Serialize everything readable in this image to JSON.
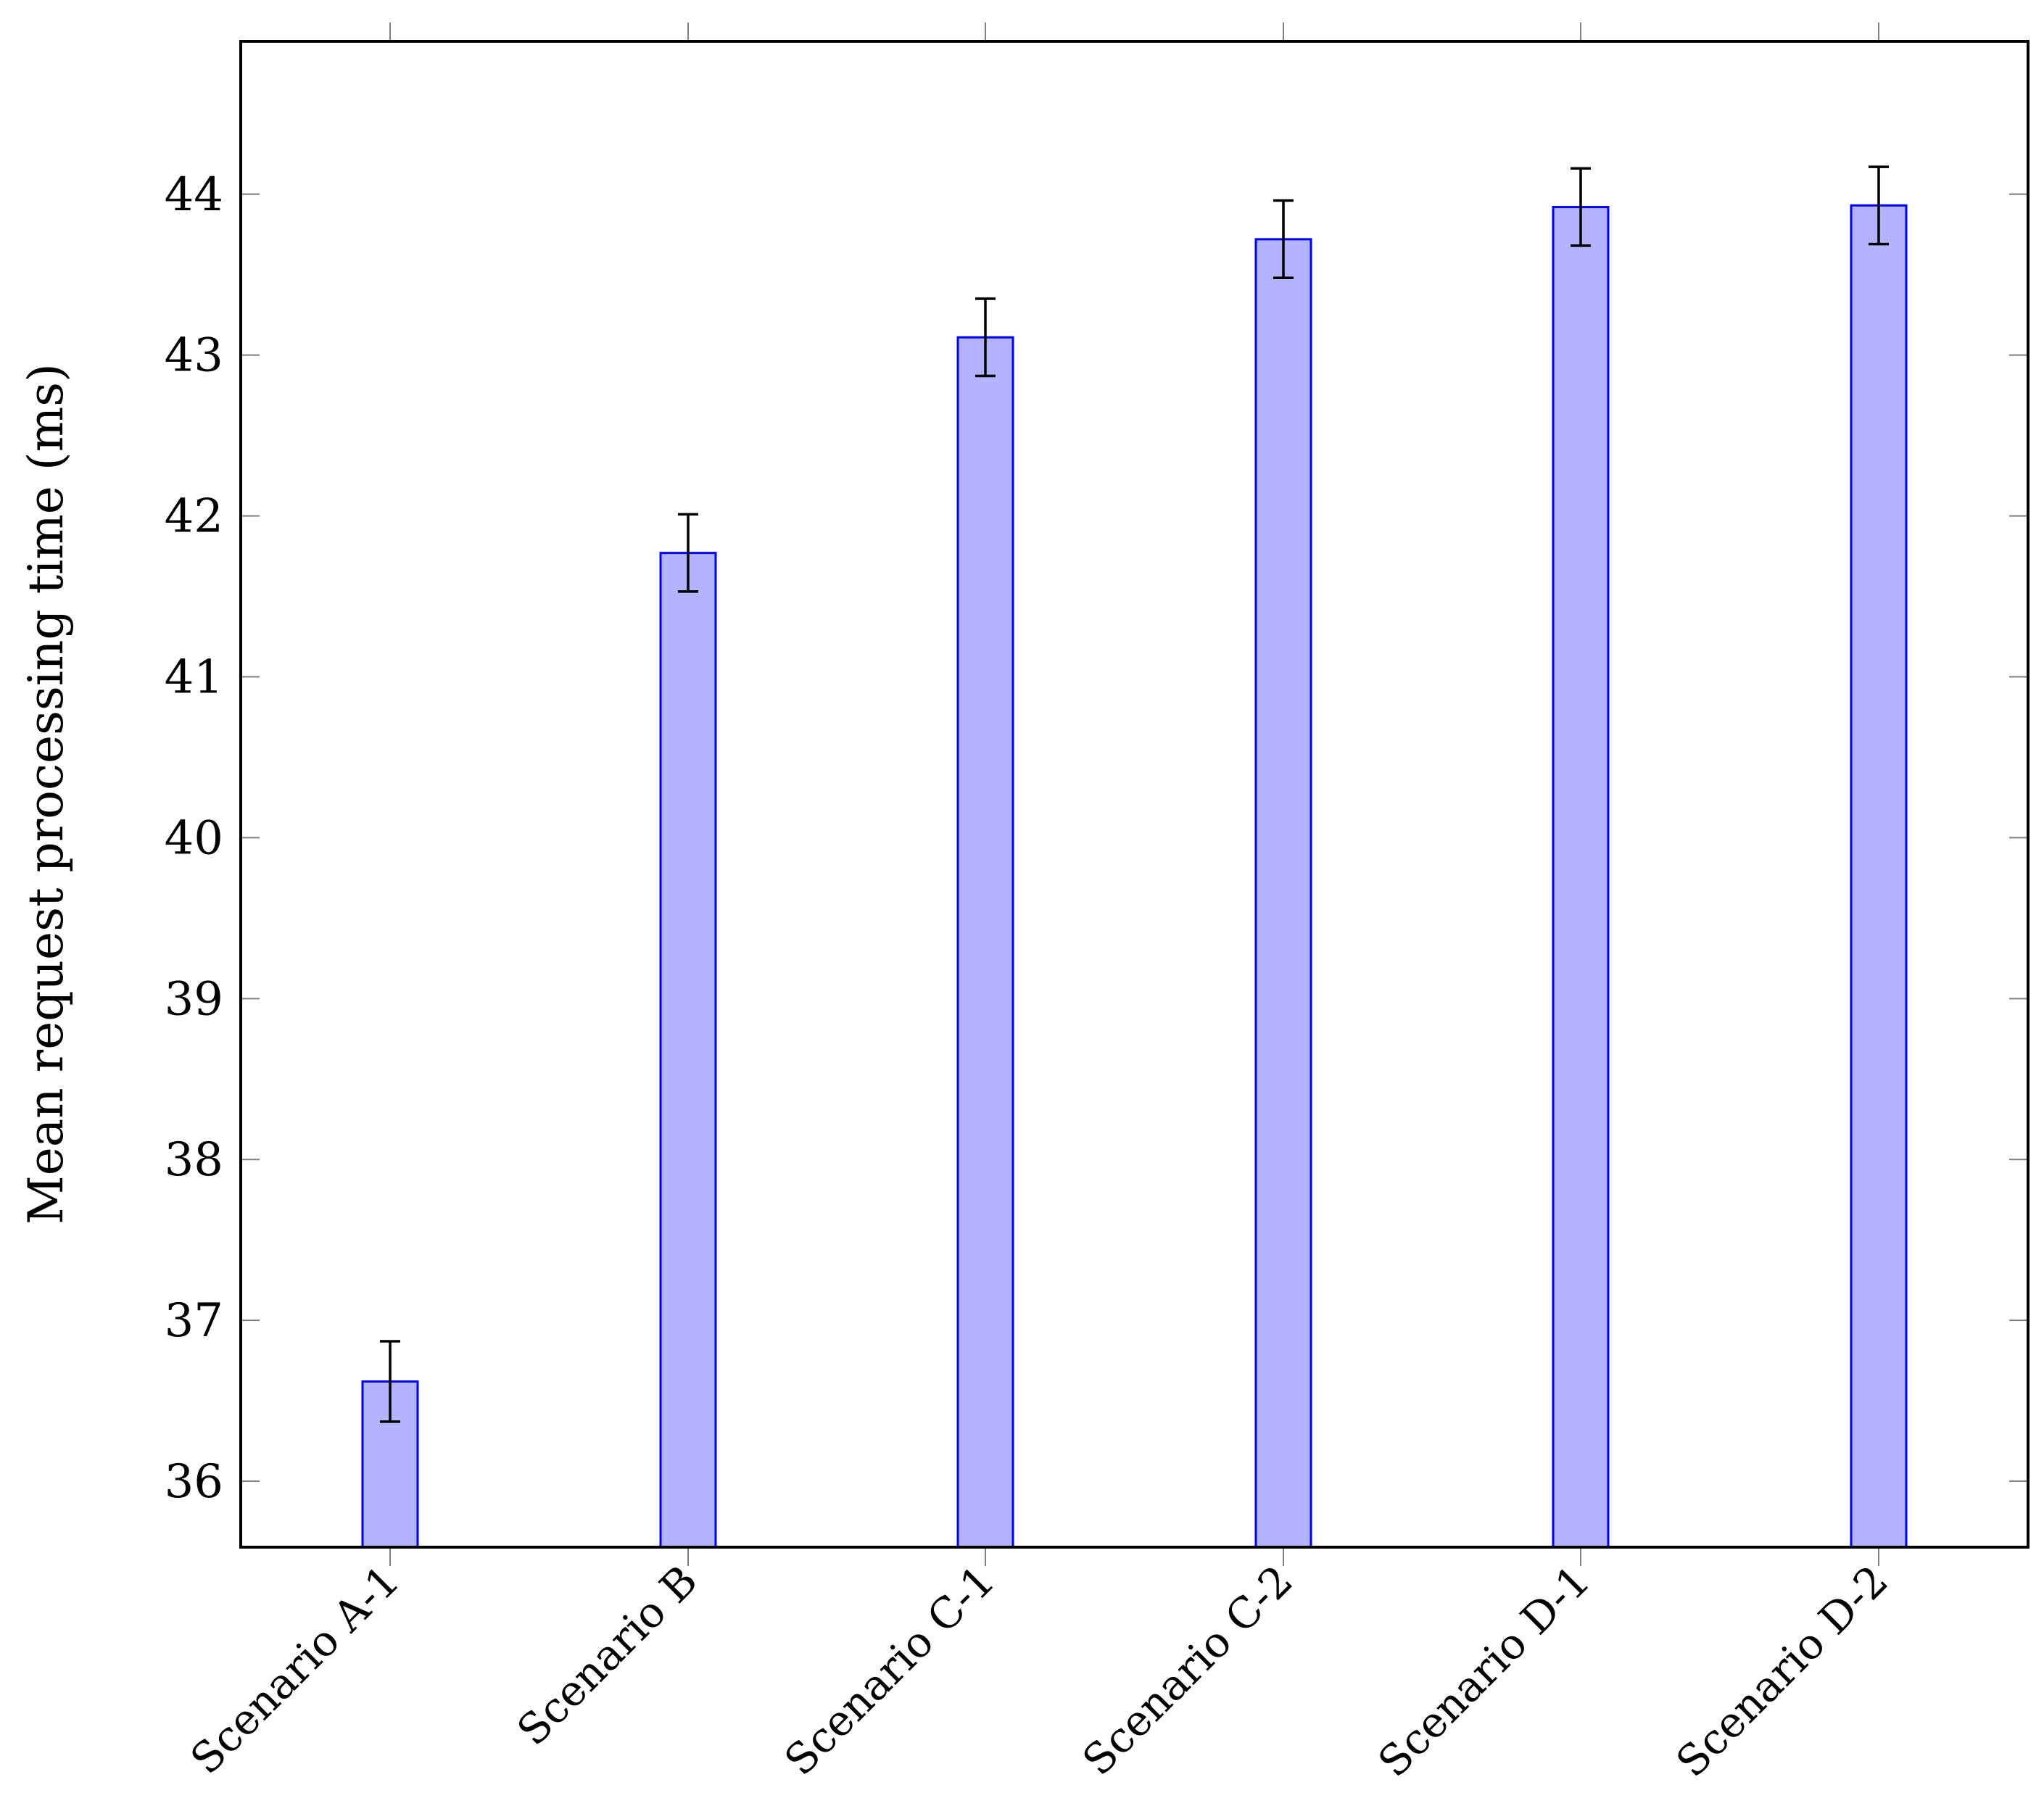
{
  "chart_data": {
    "type": "bar",
    "title": "",
    "xlabel": "",
    "ylabel": "Mean request processing time (ms)",
    "categories": [
      "Scenario A-1",
      "Scenario B",
      "Scenario C-1",
      "Scenario C-2",
      "Scenario D-1",
      "Scenario D-2"
    ],
    "values": [
      36.62,
      41.77,
      43.11,
      43.72,
      43.92,
      43.93
    ],
    "errors": [
      0.25,
      0.24,
      0.24,
      0.24,
      0.24,
      0.24
    ],
    "yticks": [
      36,
      37,
      38,
      39,
      40,
      41,
      42,
      43,
      44
    ],
    "ylim": [
      35.59,
      44.95
    ],
    "grid": false,
    "colors": {
      "bar_fill": "#b3b3ff",
      "bar_stroke": "#0000ee",
      "error_bar": "#000000",
      "axis": "#000000",
      "tick": "#808080"
    }
  }
}
